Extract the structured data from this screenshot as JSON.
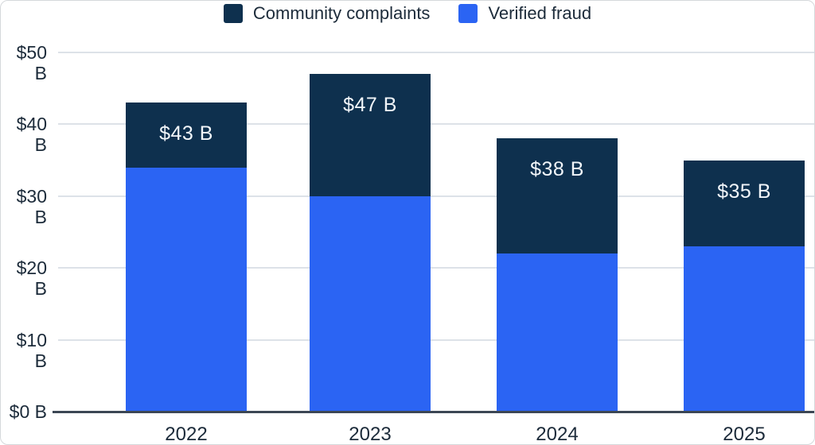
{
  "legend": {
    "items": [
      {
        "label": "Community complaints",
        "color": "#0e304e"
      },
      {
        "label": "Verified fraud",
        "color": "#2b64f3"
      }
    ]
  },
  "chart_data": {
    "type": "bar",
    "stacked": true,
    "title": "",
    "xlabel": "",
    "ylabel": "",
    "categories": [
      "2022",
      "2023",
      "2024",
      "2025"
    ],
    "series": [
      {
        "name": "Verified fraud",
        "color": "#2b64f3",
        "values": [
          34,
          30,
          22,
          23
        ]
      },
      {
        "name": "Community complaints",
        "color": "#0e304e",
        "values": [
          9,
          17,
          16,
          12
        ]
      }
    ],
    "totals": [
      43,
      47,
      38,
      35
    ],
    "total_labels": [
      "$43 B",
      "$47 B",
      "$38 B",
      "$35 B"
    ],
    "yticks": [
      {
        "value": 0,
        "label": "$0 B"
      },
      {
        "value": 10,
        "label": "$10 B"
      },
      {
        "value": 20,
        "label": "$20 B"
      },
      {
        "value": 30,
        "label": "$30 B"
      },
      {
        "value": 40,
        "label": "$40 B"
      },
      {
        "value": 50,
        "label": "$50 B"
      }
    ],
    "ylim": [
      0,
      50
    ],
    "grid": true,
    "legend_position": "top"
  },
  "colors": {
    "background": "#ffffff",
    "community_complaints": "#0e304e",
    "verified_fraud": "#2b64f3",
    "gridline": "#dde2e8",
    "axis_line": "#3c4754",
    "text": "#1c2b3a",
    "bar_label_text": "#f2f6fa",
    "frame_border": "#d5d8db"
  }
}
